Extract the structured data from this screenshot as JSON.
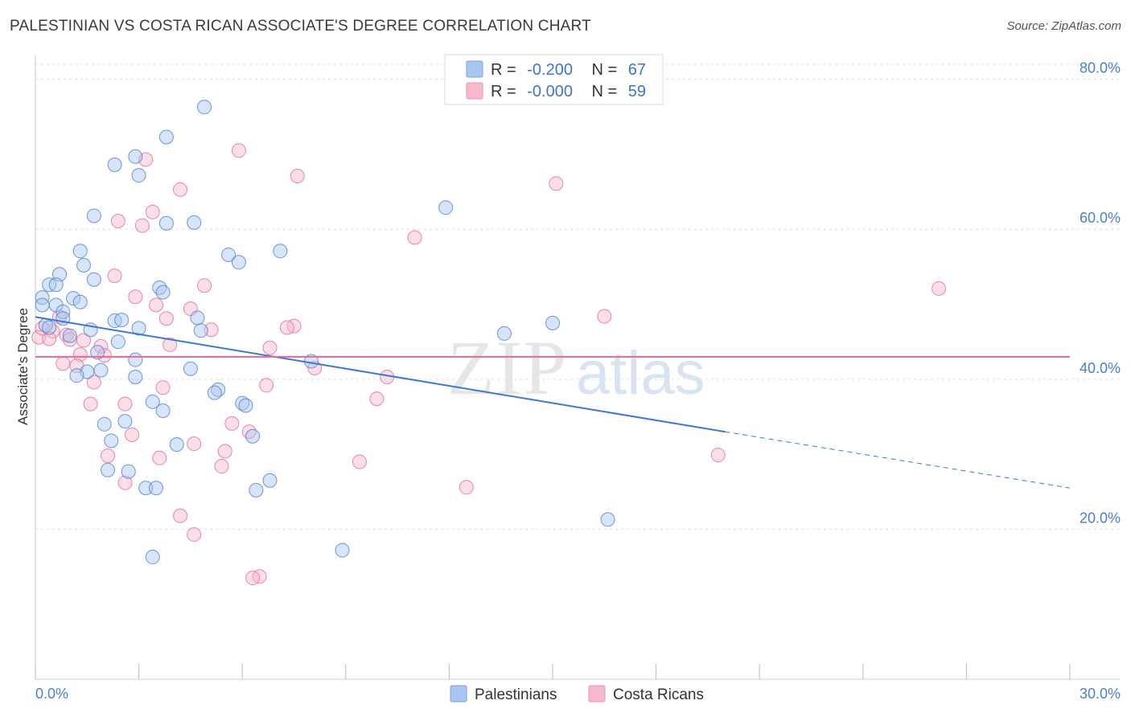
{
  "title": "PALESTINIAN VS COSTA RICAN ASSOCIATE'S DEGREE CORRELATION CHART",
  "source": "Source: ZipAtlas.com",
  "watermark": {
    "zip": "ZIP",
    "atlas": "atlas"
  },
  "legend": {
    "rows": [
      {
        "r_label": "R =",
        "r_value": "-0.200",
        "n_label": "N =",
        "n_value": "67",
        "color": "#a8c6f0"
      },
      {
        "r_label": "R =",
        "r_value": "-0.000",
        "n_label": "N =",
        "n_value": "59",
        "color": "#f6b8cc"
      }
    ]
  },
  "bottom_legend": [
    "Palestinians",
    "Costa Ricans"
  ],
  "chart_data": {
    "type": "scatter",
    "title": "PALESTINIAN VS COSTA RICAN ASSOCIATE'S DEGREE CORRELATION CHART",
    "xlabel": "",
    "ylabel": "Associate's Degree",
    "xlim": [
      0,
      30
    ],
    "ylim": [
      0,
      82
    ],
    "x_tick_labels": [
      "0.0%",
      "30.0%"
    ],
    "y_ticks": [
      20,
      40,
      60,
      80
    ],
    "y_tick_labels": [
      "20.0%",
      "40.0%",
      "60.0%",
      "80.0%"
    ],
    "series": [
      {
        "name": "Palestinians",
        "color": "#4a7fd0",
        "fill": "#a8c6f0",
        "r": -0.2,
        "n": 67,
        "trend": {
          "x0": 0,
          "y0": 48.3,
          "x1": 20.0,
          "y1": 33.0,
          "dash_to_x": 30,
          "dash_to_y": 25.5
        },
        "points": [
          [
            4.9,
            76.3
          ],
          [
            3.8,
            72.3
          ],
          [
            2.9,
            69.7
          ],
          [
            2.3,
            68.6
          ],
          [
            3.0,
            67.2
          ],
          [
            11.9,
            62.9
          ],
          [
            1.7,
            61.8
          ],
          [
            3.8,
            60.8
          ],
          [
            4.6,
            60.9
          ],
          [
            1.3,
            57.1
          ],
          [
            7.1,
            57.1
          ],
          [
            5.6,
            56.6
          ],
          [
            5.9,
            55.6
          ],
          [
            1.4,
            55.2
          ],
          [
            0.7,
            54.0
          ],
          [
            1.7,
            53.3
          ],
          [
            0.4,
            52.6
          ],
          [
            0.6,
            52.6
          ],
          [
            3.6,
            52.2
          ],
          [
            3.7,
            51.6
          ],
          [
            0.2,
            50.9
          ],
          [
            1.1,
            50.8
          ],
          [
            1.3,
            50.3
          ],
          [
            0.2,
            49.9
          ],
          [
            0.6,
            49.9
          ],
          [
            0.8,
            49.0
          ],
          [
            0.8,
            48.1
          ],
          [
            2.3,
            47.8
          ],
          [
            2.5,
            47.9
          ],
          [
            4.7,
            48.2
          ],
          [
            0.3,
            47.2
          ],
          [
            1.6,
            46.6
          ],
          [
            4.8,
            46.5
          ],
          [
            13.6,
            46.1
          ],
          [
            15.0,
            47.5
          ],
          [
            1.0,
            45.8
          ],
          [
            2.4,
            45.0
          ],
          [
            1.8,
            43.6
          ],
          [
            2.9,
            42.6
          ],
          [
            8.0,
            42.4
          ],
          [
            4.5,
            41.4
          ],
          [
            1.5,
            41.0
          ],
          [
            1.9,
            41.2
          ],
          [
            1.2,
            40.5
          ],
          [
            2.9,
            40.3
          ],
          [
            5.3,
            38.6
          ],
          [
            5.2,
            38.2
          ],
          [
            3.4,
            37.0
          ],
          [
            6.0,
            36.8
          ],
          [
            6.1,
            36.5
          ],
          [
            3.7,
            35.8
          ],
          [
            2.6,
            34.4
          ],
          [
            2.0,
            34.0
          ],
          [
            6.3,
            32.4
          ],
          [
            2.2,
            31.8
          ],
          [
            4.1,
            31.3
          ],
          [
            2.1,
            27.9
          ],
          [
            2.7,
            27.7
          ],
          [
            6.8,
            26.5
          ],
          [
            3.2,
            25.5
          ],
          [
            3.5,
            25.5
          ],
          [
            6.4,
            25.2
          ],
          [
            16.6,
            21.3
          ],
          [
            8.9,
            17.2
          ],
          [
            3.4,
            16.3
          ],
          [
            3.0,
            46.8
          ],
          [
            0.4,
            46.9
          ]
        ]
      },
      {
        "name": "Costa Ricans",
        "color": "#e46a91",
        "fill": "#f6b8cc",
        "r": -0.0,
        "n": 59,
        "trend": {
          "x0": 0,
          "y0": 43.0,
          "x1": 30,
          "y1": 43.0
        },
        "points": [
          [
            5.9,
            70.5
          ],
          [
            3.2,
            69.3
          ],
          [
            15.1,
            66.1
          ],
          [
            7.6,
            67.1
          ],
          [
            4.2,
            65.3
          ],
          [
            3.4,
            62.3
          ],
          [
            2.4,
            61.1
          ],
          [
            3.1,
            60.5
          ],
          [
            11.0,
            58.9
          ],
          [
            2.3,
            53.8
          ],
          [
            4.9,
            52.5
          ],
          [
            26.2,
            52.1
          ],
          [
            2.9,
            51.0
          ],
          [
            3.5,
            49.9
          ],
          [
            4.5,
            49.4
          ],
          [
            16.5,
            48.4
          ],
          [
            3.8,
            48.1
          ],
          [
            0.7,
            48.3
          ],
          [
            7.5,
            47.1
          ],
          [
            7.3,
            46.9
          ],
          [
            5.1,
            46.6
          ],
          [
            0.5,
            46.4
          ],
          [
            0.9,
            45.9
          ],
          [
            0.1,
            45.6
          ],
          [
            0.4,
            45.4
          ],
          [
            1.4,
            45.2
          ],
          [
            1.0,
            45.3
          ],
          [
            3.9,
            44.6
          ],
          [
            1.9,
            44.4
          ],
          [
            6.8,
            44.2
          ],
          [
            1.3,
            43.3
          ],
          [
            2.0,
            43.2
          ],
          [
            0.8,
            42.1
          ],
          [
            1.2,
            41.8
          ],
          [
            8.1,
            41.5
          ],
          [
            10.2,
            40.3
          ],
          [
            1.7,
            39.6
          ],
          [
            6.7,
            39.2
          ],
          [
            3.7,
            38.9
          ],
          [
            9.9,
            37.4
          ],
          [
            1.6,
            36.7
          ],
          [
            2.6,
            36.7
          ],
          [
            5.7,
            34.1
          ],
          [
            6.2,
            33.0
          ],
          [
            2.8,
            32.6
          ],
          [
            4.6,
            31.4
          ],
          [
            5.5,
            30.4
          ],
          [
            2.1,
            29.8
          ],
          [
            19.8,
            29.9
          ],
          [
            3.6,
            29.5
          ],
          [
            9.4,
            29.0
          ],
          [
            5.4,
            28.4
          ],
          [
            2.6,
            26.2
          ],
          [
            12.5,
            25.6
          ],
          [
            4.2,
            21.8
          ],
          [
            4.6,
            19.3
          ],
          [
            6.5,
            13.7
          ],
          [
            6.3,
            13.5
          ],
          [
            0.2,
            46.8
          ]
        ]
      }
    ]
  }
}
